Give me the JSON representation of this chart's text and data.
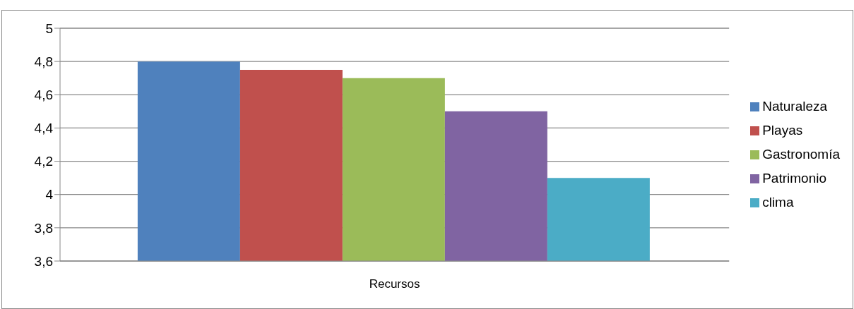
{
  "chart_data": {
    "type": "bar",
    "categories": [
      "Recursos"
    ],
    "series": [
      {
        "name": "Naturaleza",
        "color": "#4f81bd",
        "values": [
          4.8
        ]
      },
      {
        "name": "Playas",
        "color": "#c0504d",
        "values": [
          4.75
        ]
      },
      {
        "name": "Gastronomía",
        "color": "#9bbb59",
        "values": [
          4.7
        ]
      },
      {
        "name": "Patrimonio",
        "color": "#8064a2",
        "values": [
          4.5
        ]
      },
      {
        "name": "clima",
        "color": "#4bacc6",
        "values": [
          4.1
        ]
      }
    ],
    "ylim": [
      3.6,
      5
    ],
    "yticks": [
      {
        "value": 3.6,
        "label": "3,6"
      },
      {
        "value": 3.8,
        "label": "3,8"
      },
      4,
      {
        "value": 4.2,
        "label": "4,2"
      },
      {
        "value": 4.4,
        "label": "4,4"
      },
      {
        "value": 4.6,
        "label": "4,6"
      },
      {
        "value": 4.8,
        "label": "4,8"
      },
      5
    ],
    "grid": "y",
    "legend": "right"
  }
}
